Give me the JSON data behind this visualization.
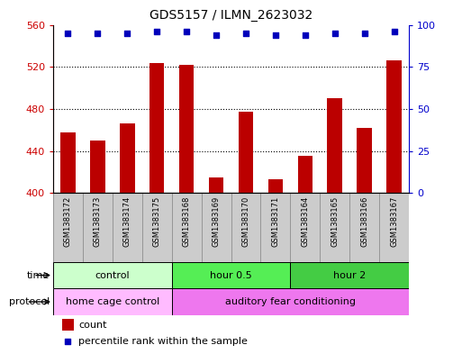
{
  "title": "GDS5157 / ILMN_2623032",
  "samples": [
    "GSM1383172",
    "GSM1383173",
    "GSM1383174",
    "GSM1383175",
    "GSM1383168",
    "GSM1383169",
    "GSM1383170",
    "GSM1383171",
    "GSM1383164",
    "GSM1383165",
    "GSM1383166",
    "GSM1383167"
  ],
  "counts": [
    458,
    450,
    466,
    524,
    522,
    415,
    477,
    413,
    435,
    490,
    462,
    526
  ],
  "percentiles": [
    95,
    95,
    95,
    96,
    96,
    94,
    95,
    94,
    94,
    95,
    95,
    96
  ],
  "ylim_left": [
    400,
    560
  ],
  "ylim_right": [
    0,
    100
  ],
  "yticks_left": [
    400,
    440,
    480,
    520,
    560
  ],
  "yticks_right": [
    0,
    25,
    50,
    75,
    100
  ],
  "bar_color": "#bb0000",
  "dot_color": "#0000bb",
  "time_groups": [
    {
      "label": "control",
      "start": 0,
      "end": 4,
      "color": "#ccffcc"
    },
    {
      "label": "hour 0.5",
      "start": 4,
      "end": 8,
      "color": "#55ee55"
    },
    {
      "label": "hour 2",
      "start": 8,
      "end": 12,
      "color": "#44cc44"
    }
  ],
  "protocol_groups": [
    {
      "label": "home cage control",
      "start": 0,
      "end": 4,
      "color": "#ffbbff"
    },
    {
      "label": "auditory fear conditioning",
      "start": 4,
      "end": 12,
      "color": "#ee77ee"
    }
  ],
  "legend_count_color": "#bb0000",
  "legend_dot_color": "#0000bb",
  "background_color": "#ffffff",
  "sample_bg_color": "#cccccc",
  "tick_label_color_left": "#cc0000",
  "tick_label_color_right": "#0000cc",
  "bar_width": 0.5,
  "fig_width": 5.13,
  "fig_height": 3.93,
  "dpi": 100
}
